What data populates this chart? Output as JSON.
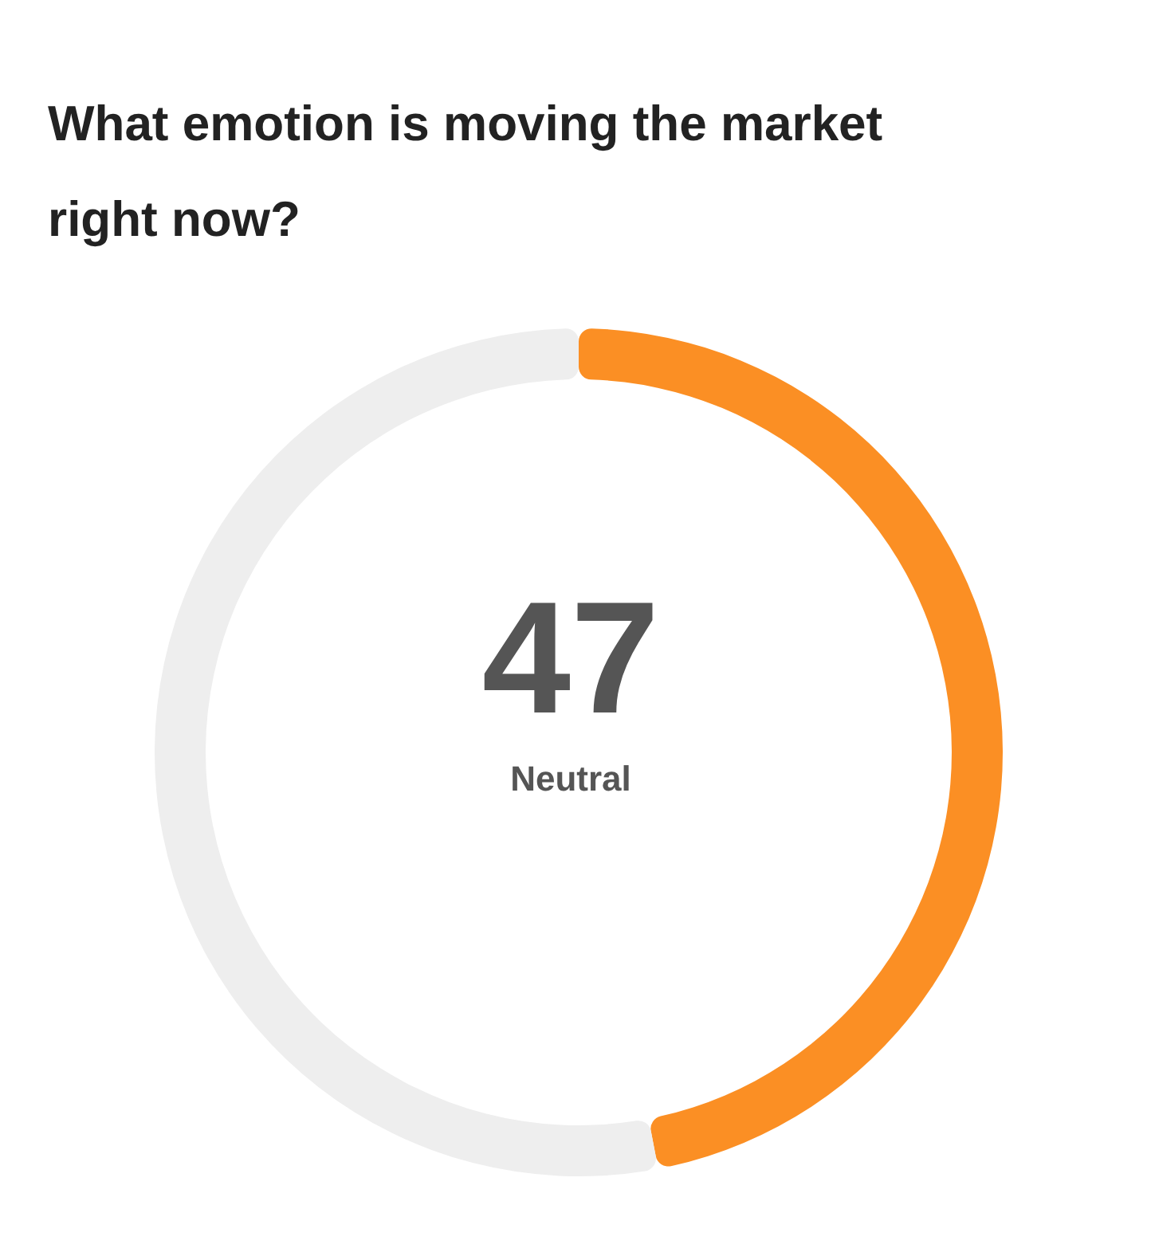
{
  "chart_data": {
    "type": "donut",
    "title": "What emotion is moving the market right now?",
    "categories": [
      null,
      null
    ],
    "values": [
      47,
      53
    ],
    "colors": [
      "#fb8f24",
      "#eeeeee"
    ],
    "annotations": [
      "47",
      "Neutral"
    ]
  }
}
